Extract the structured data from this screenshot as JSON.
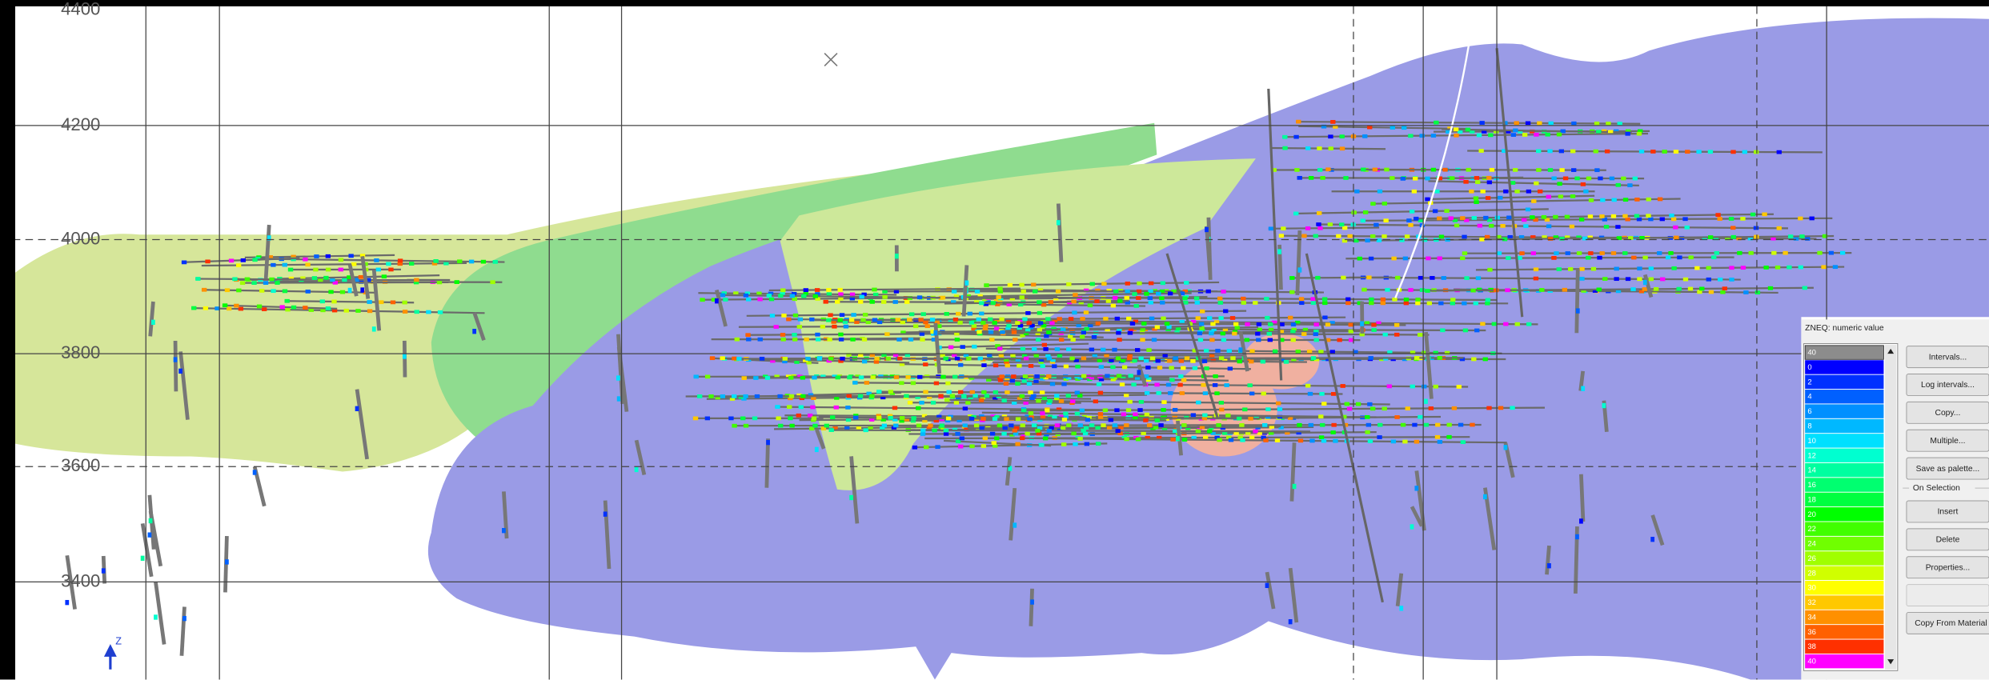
{
  "view": {
    "elevation_labels": [
      "4400",
      "4200",
      "4000",
      "3800",
      "3600",
      "3400"
    ],
    "axis_label": "Z"
  },
  "legend": {
    "title": "ZNEQ: numeric value",
    "entries": [
      {
        "label": "40",
        "color": "#8c8c8c"
      },
      {
        "label": "0",
        "color": "#0000ff"
      },
      {
        "label": "2",
        "color": "#0030ff"
      },
      {
        "label": "4",
        "color": "#0060ff"
      },
      {
        "label": "6",
        "color": "#0090ff"
      },
      {
        "label": "8",
        "color": "#00b8ff"
      },
      {
        "label": "10",
        "color": "#00e0ff"
      },
      {
        "label": "12",
        "color": "#00ffd0"
      },
      {
        "label": "14",
        "color": "#00ffa0"
      },
      {
        "label": "16",
        "color": "#00ff70"
      },
      {
        "label": "18",
        "color": "#00ff40"
      },
      {
        "label": "20",
        "color": "#00ff00"
      },
      {
        "label": "22",
        "color": "#40ff00"
      },
      {
        "label": "24",
        "color": "#70ff00"
      },
      {
        "label": "26",
        "color": "#a0ff00"
      },
      {
        "label": "28",
        "color": "#d0ff00"
      },
      {
        "label": "30",
        "color": "#ffff00"
      },
      {
        "label": "32",
        "color": "#ffc800"
      },
      {
        "label": "34",
        "color": "#ff9000"
      },
      {
        "label": "36",
        "color": "#ff6000"
      },
      {
        "label": "38",
        "color": "#ff3000"
      },
      {
        "label": "40",
        "color": "#ff00ff"
      }
    ],
    "buttons": [
      "Intervals...",
      "Log intervals...",
      "Copy...",
      "Multiple...",
      "Save as palette..."
    ],
    "group_label": "On Selection",
    "selection_buttons": [
      "Insert",
      "Delete",
      "Properties..."
    ],
    "last_button": "Copy From Material"
  }
}
